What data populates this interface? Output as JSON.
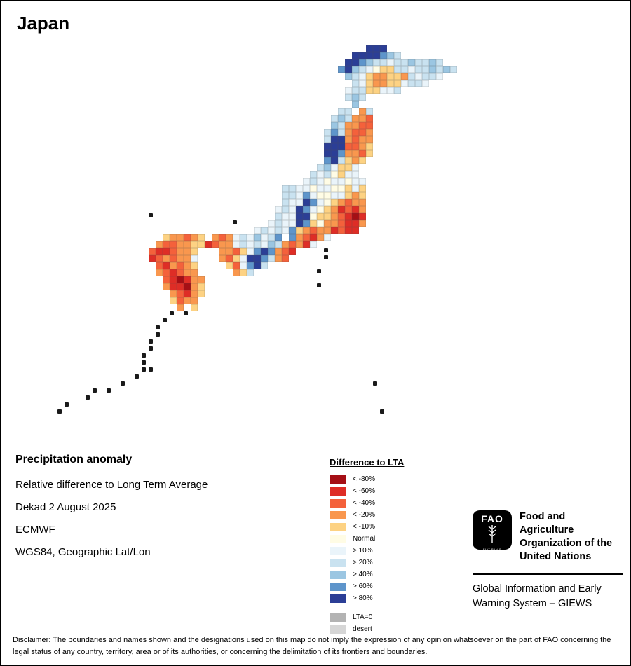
{
  "title": "Japan",
  "map": {
    "palette": {
      "A": "#a50f15",
      "B": "#de2d26",
      "C": "#f4613b",
      "D": "#f9974e",
      "E": "#fdd283",
      "N": "#fffce5",
      "F": "#eaf4fa",
      "G": "#c9e2f0",
      "H": "#9bc6e2",
      "I": "#5e95cb",
      "J": "#2b3e96",
      "x": "#1a1a1a"
    },
    "rows": [
      [
        1,
        [
          [
            44,
            "JJJ"
          ]
        ]
      ],
      [
        2,
        [
          [
            42,
            "JJJJIHG"
          ]
        ]
      ],
      [
        3,
        [
          [
            41,
            "JJIHGGFGGHGGHG"
          ]
        ]
      ],
      [
        4,
        [
          [
            40,
            "IJHGFNEEGGFGGHGHG"
          ]
        ]
      ],
      [
        5,
        [
          [
            41,
            "HGFEDDEEDGFGGF"
          ]
        ]
      ],
      [
        6,
        [
          [
            42,
            "GFEDDEEFGGF"
          ]
        ]
      ],
      [
        7,
        [
          [
            41,
            "FGGEEFFG"
          ]
        ]
      ],
      [
        8,
        [
          [
            41,
            "GHG"
          ]
        ]
      ],
      [
        9,
        [
          [
            42,
            "H"
          ]
        ]
      ],
      [
        10,
        [
          [
            40,
            "GG"
          ],
          [
            43,
            "DG"
          ]
        ]
      ],
      [
        11,
        [
          [
            39,
            "GHGDDC"
          ]
        ]
      ],
      [
        12,
        [
          [
            39,
            "HGDDCC"
          ]
        ]
      ],
      [
        13,
        [
          [
            38,
            "GIGDCCD"
          ]
        ]
      ],
      [
        14,
        [
          [
            38,
            "GJJDCDD"
          ]
        ]
      ],
      [
        15,
        [
          [
            38,
            "JJJCCDE"
          ]
        ]
      ],
      [
        16,
        [
          [
            38,
            "JJIDDCE"
          ]
        ]
      ],
      [
        17,
        [
          [
            38,
            "IJGEDE"
          ]
        ]
      ],
      [
        18,
        [
          [
            37,
            "GHFEEF"
          ]
        ]
      ],
      [
        19,
        [
          [
            36,
            "GFGNEFF"
          ]
        ]
      ],
      [
        20,
        [
          [
            35,
            "FGFNFFNFF"
          ]
        ]
      ],
      [
        21,
        [
          [
            32,
            "GGFFNFFNNEFE"
          ]
        ]
      ],
      [
        22,
        [
          [
            32,
            "GGFIFNNFFEDE"
          ]
        ]
      ],
      [
        23,
        [
          [
            32,
            "GFFJIFNEDCDD"
          ]
        ]
      ],
      [
        24,
        [
          [
            31,
            "FGFJIFNEDBCBD"
          ]
        ]
      ],
      [
        25,
        [
          [
            13,
            "x"
          ],
          [
            31,
            "GFFJJNEEDCBAB"
          ]
        ]
      ],
      [
        26,
        [
          [
            25,
            "x"
          ],
          [
            30,
            "FGFFJIENDDCBBD"
          ]
        ]
      ],
      [
        27,
        [
          [
            28,
            "FGFGFIEDCDDBCBB"
          ]
        ]
      ],
      [
        28,
        [
          [
            15,
            "EDDCDE"
          ],
          [
            22,
            "DCDFGFHFGI"
          ],
          [
            33,
            "IDCBDF"
          ]
        ]
      ],
      [
        29,
        [
          [
            14,
            "DCCDDEE"
          ],
          [
            21,
            "BCDDFGFGFHG"
          ],
          [
            32,
            "DCDBF"
          ]
        ]
      ],
      [
        30,
        [
          [
            13,
            "CBBCDDE"
          ],
          [
            23,
            "DDCE"
          ],
          [
            27,
            "FIJID"
          ],
          [
            32,
            "CB"
          ],
          [
            38,
            "x"
          ]
        ]
      ],
      [
        31,
        [
          [
            13,
            "BCDCDDF"
          ],
          [
            23,
            "DCEFJJIG"
          ],
          [
            31,
            "DC"
          ],
          [
            38,
            "x"
          ]
        ]
      ],
      [
        32,
        [
          [
            14,
            "CBDCDE"
          ],
          [
            24,
            "ECFIJG"
          ]
        ]
      ],
      [
        33,
        [
          [
            14,
            "DCBCDD"
          ],
          [
            25,
            "DEG"
          ],
          [
            37,
            "x"
          ]
        ]
      ],
      [
        34,
        [
          [
            15,
            "CBABDD"
          ]
        ]
      ],
      [
        35,
        [
          [
            15,
            "DBBADE"
          ],
          [
            37,
            "x"
          ]
        ]
      ],
      [
        36,
        [
          [
            16,
            "DCBDE"
          ]
        ]
      ],
      [
        37,
        [
          [
            16,
            "ECDD"
          ]
        ]
      ],
      [
        38,
        [
          [
            17,
            "D"
          ],
          [
            19,
            "E"
          ]
        ]
      ],
      [
        39,
        [
          [
            16,
            "x"
          ],
          [
            18,
            "x"
          ]
        ]
      ],
      [
        40,
        [
          [
            15,
            "x"
          ]
        ]
      ],
      [
        41,
        [
          [
            14,
            "x"
          ]
        ]
      ],
      [
        42,
        [
          [
            14,
            "x"
          ]
        ]
      ],
      [
        43,
        [
          [
            13,
            "x"
          ]
        ]
      ],
      [
        44,
        [
          [
            13,
            "x"
          ]
        ]
      ],
      [
        45,
        [
          [
            12,
            "x"
          ]
        ]
      ],
      [
        46,
        [
          [
            12,
            "x"
          ]
        ]
      ],
      [
        47,
        [
          [
            12,
            "xx"
          ]
        ]
      ],
      [
        48,
        [
          [
            11,
            "x"
          ]
        ]
      ],
      [
        49,
        [
          [
            9,
            "x"
          ],
          [
            45,
            "x"
          ]
        ]
      ],
      [
        50,
        [
          [
            5,
            "x"
          ],
          [
            7,
            "x"
          ]
        ]
      ],
      [
        51,
        [
          [
            4,
            "x"
          ]
        ]
      ],
      [
        52,
        [
          [
            1,
            "x"
          ]
        ]
      ],
      [
        53,
        [
          [
            0,
            "x"
          ],
          [
            46,
            "x"
          ]
        ]
      ]
    ]
  },
  "info": {
    "heading": "Precipitation anomaly",
    "line1": "Relative difference to Long Term Average",
    "line2": "Dekad 2 August 2025",
    "line3": "ECMWF",
    "line4": "WGS84, Geographic Lat/Lon"
  },
  "legend": {
    "title": "Difference to LTA",
    "items": [
      {
        "label": "< -80%",
        "color": "#a50f15"
      },
      {
        "label": "< -60%",
        "color": "#de2d26"
      },
      {
        "label": "< -40%",
        "color": "#f4613b"
      },
      {
        "label": "< -20%",
        "color": "#f9974e"
      },
      {
        "label": "< -10%",
        "color": "#fdd283"
      },
      {
        "label": "Normal",
        "color": "#fffce5"
      },
      {
        "label": "> 10%",
        "color": "#eaf4fa"
      },
      {
        "label": "> 20%",
        "color": "#c9e2f0"
      },
      {
        "label": "> 40%",
        "color": "#9bc6e2"
      },
      {
        "label": "> 60%",
        "color": "#5e95cb"
      },
      {
        "label": "> 80%",
        "color": "#2b3e96"
      },
      {
        "label": "LTA=0",
        "color": "#b3b3b3",
        "gap_before": true
      },
      {
        "label": "desert",
        "color": "#d6d6d6"
      }
    ]
  },
  "fao": {
    "logo_text": "FAO",
    "logo_subtext": "FIAT PANIS",
    "org_name": "Food and Agriculture Organization of the United Nations",
    "program": "Global Information and Early Warning System – GIEWS"
  },
  "disclaimer": "Disclaimer: The boundaries and names shown and the designations used on this map do not imply the expression of any opinion whatsoever on the part of FAO concerning the legal status of any country, territory, area or of its authorities, or concerning the delimitation of its frontiers and boundaries."
}
